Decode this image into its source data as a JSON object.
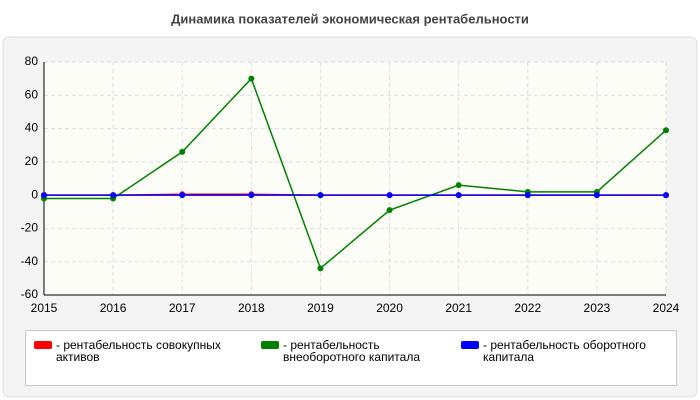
{
  "chart_data": {
    "type": "line",
    "title": "Динамика показателей экономическая рентабельности",
    "x": [
      2015,
      2016,
      2017,
      2018,
      2019,
      2020,
      2021,
      2022,
      2023,
      2024
    ],
    "xlim": [
      2015,
      2024
    ],
    "xticks": [
      2015,
      2016,
      2017,
      2018,
      2019,
      2020,
      2021,
      2022,
      2023,
      2024
    ],
    "ylim": [
      -60,
      80
    ],
    "yticks": [
      -60,
      -40,
      -20,
      0,
      20,
      40,
      60,
      80
    ],
    "grid": true,
    "series": [
      {
        "name": "- рентабельность совокупных активов",
        "color": "#ff0000",
        "values": [
          0,
          0,
          0.5,
          0.5,
          0,
          0,
          0,
          0,
          0,
          0
        ]
      },
      {
        "name": "- рентабельность внеоборотного капитала",
        "color": "#008000",
        "values": [
          -2,
          -2,
          26,
          70,
          -44,
          -9,
          6,
          2,
          2,
          39
        ]
      },
      {
        "name": "- рентабельность оборотного капитала",
        "color": "#0000ff",
        "values": [
          0,
          0,
          0,
          0,
          0,
          0,
          0,
          0,
          0,
          0
        ]
      }
    ]
  }
}
